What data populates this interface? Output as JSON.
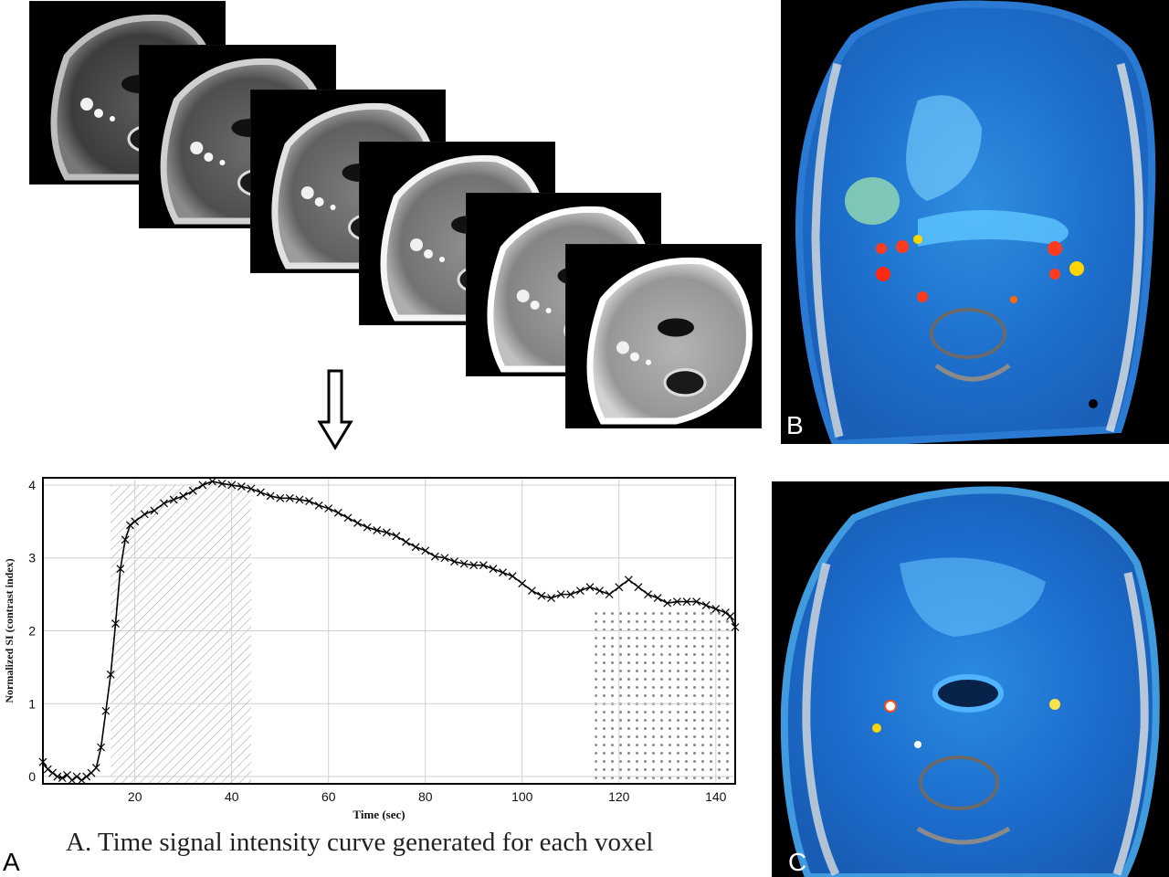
{
  "figure": {
    "caption": "A. Time signal intensity curve generated for each voxel",
    "panel_labels": {
      "a": "A",
      "b": "B",
      "c": "C"
    }
  },
  "series_frames": {
    "count": 6
  },
  "chart_data": {
    "type": "line",
    "title": "",
    "xlabel": "Time (sec)",
    "ylabel": "Normalized SI (contrast index)",
    "xlim": [
      1,
      144
    ],
    "ylim": [
      -0.1,
      4.1
    ],
    "xticks": [
      20,
      40,
      60,
      80,
      100,
      120,
      140
    ],
    "yticks": [
      0,
      1,
      2,
      3,
      4
    ],
    "grid": true,
    "shaded_regions": [
      {
        "pattern": "hatch",
        "x": [
          15,
          44
        ],
        "y_top": 4.0
      },
      {
        "pattern": "dots",
        "x": [
          115,
          144
        ],
        "y_top": 2.3
      }
    ],
    "series": [
      {
        "marker": "x",
        "x": [
          1,
          2,
          3,
          4,
          5,
          6,
          7,
          8,
          9,
          10,
          11,
          12,
          13,
          14,
          15,
          16,
          17,
          18,
          19,
          20,
          22,
          24,
          26,
          28,
          30,
          32,
          34,
          36,
          38,
          40,
          42,
          44,
          46,
          48,
          50,
          52,
          54,
          56,
          58,
          60,
          62,
          64,
          66,
          68,
          70,
          72,
          74,
          76,
          78,
          80,
          82,
          84,
          86,
          88,
          90,
          92,
          94,
          96,
          98,
          100,
          102,
          104,
          106,
          108,
          110,
          112,
          114,
          116,
          118,
          120,
          122,
          124,
          126,
          128,
          130,
          132,
          134,
          136,
          138,
          140,
          142,
          143,
          144
        ],
        "y": [
          0.2,
          0.1,
          0.05,
          0.0,
          -0.02,
          0.02,
          -0.05,
          0.0,
          -0.05,
          0.0,
          0.05,
          0.12,
          0.4,
          0.9,
          1.4,
          2.1,
          2.85,
          3.25,
          3.45,
          3.5,
          3.6,
          3.65,
          3.75,
          3.8,
          3.85,
          3.92,
          4.0,
          4.05,
          4.02,
          4.0,
          3.98,
          3.95,
          3.9,
          3.85,
          3.82,
          3.82,
          3.8,
          3.78,
          3.72,
          3.68,
          3.62,
          3.55,
          3.48,
          3.42,
          3.38,
          3.35,
          3.3,
          3.22,
          3.15,
          3.1,
          3.02,
          3.0,
          2.95,
          2.92,
          2.9,
          2.9,
          2.85,
          2.8,
          2.75,
          2.65,
          2.55,
          2.48,
          2.45,
          2.5,
          2.5,
          2.55,
          2.6,
          2.55,
          2.5,
          2.6,
          2.7,
          2.6,
          2.5,
          2.45,
          2.38,
          2.4,
          2.4,
          2.4,
          2.35,
          2.3,
          2.25,
          2.2,
          2.05
        ]
      }
    ]
  }
}
